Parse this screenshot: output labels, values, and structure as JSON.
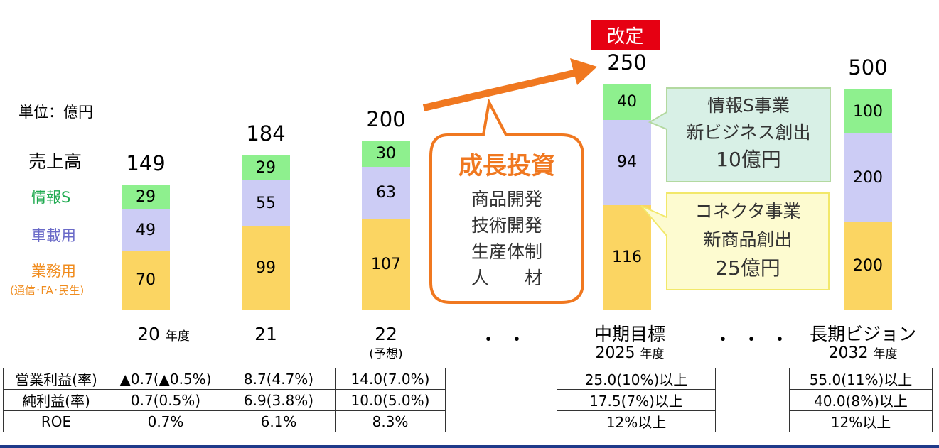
{
  "unit_label": "単位：億円",
  "revised_label": "改定",
  "legend": {
    "sales": "売上高",
    "info": "情報S",
    "auto": "車載用",
    "business": "業務用",
    "business_sub": "(通信･FA･民生)"
  },
  "colors": {
    "info": "#8ef08e",
    "auto": "#ccccf5",
    "business": "#fbd562",
    "arrow": "#f07820",
    "revised": "#e60012"
  },
  "growth_callout": {
    "title": "成長投資",
    "lines": [
      "商品開発",
      "技術開発",
      "生産体制",
      "人　　材"
    ]
  },
  "info_callout": {
    "lines": [
      "情報S事業",
      "新ビジネス創出",
      "10億円"
    ]
  },
  "connector_callout": {
    "lines": [
      "コネクタ事業",
      "新商品創出",
      "25億円"
    ]
  },
  "x_labels": {
    "fy20": "20",
    "fy20_suffix": "年度",
    "fy21": "21",
    "fy22": "22",
    "fy22_sub": "(予想)",
    "mid": "中期目標",
    "mid_year": "2025",
    "mid_suffix": "年度",
    "long": "長期ビジョン",
    "long_year": "2032",
    "long_suffix": "年度",
    "dots1": "・・",
    "dots2": "・・・"
  },
  "chart_data": {
    "type": "bar",
    "stacked": true,
    "categories": [
      "20",
      "21",
      "22",
      "中期目標 2025年度",
      "長期ビジョン 2032年度"
    ],
    "series": [
      {
        "name": "業務用",
        "values": [
          70,
          99,
          107,
          116,
          200
        ]
      },
      {
        "name": "車載用",
        "values": [
          49,
          55,
          63,
          94,
          200
        ]
      },
      {
        "name": "情報S",
        "values": [
          29,
          29,
          30,
          40,
          100
        ]
      }
    ],
    "totals": [
      149,
      184,
      200,
      250,
      500
    ],
    "ylabel": "単位：億円"
  },
  "table": {
    "rows": [
      {
        "label": "営業利益(率)",
        "values": [
          "▲0.7(▲0.5%)",
          "8.7(4.7%)",
          "14.0(7.0%)",
          "25.0(10%)以上",
          "55.0(11%)以上"
        ]
      },
      {
        "label": "純利益(率)",
        "values": [
          "0.7(0.5%)",
          "6.9(3.8%)",
          "10.0(5.0%)",
          "17.5(7%)以上",
          "40.0(8%)以上"
        ]
      },
      {
        "label": "ROE",
        "values": [
          "0.7%",
          "6.1%",
          "8.3%",
          "12%以上",
          "12%以上"
        ]
      }
    ]
  }
}
